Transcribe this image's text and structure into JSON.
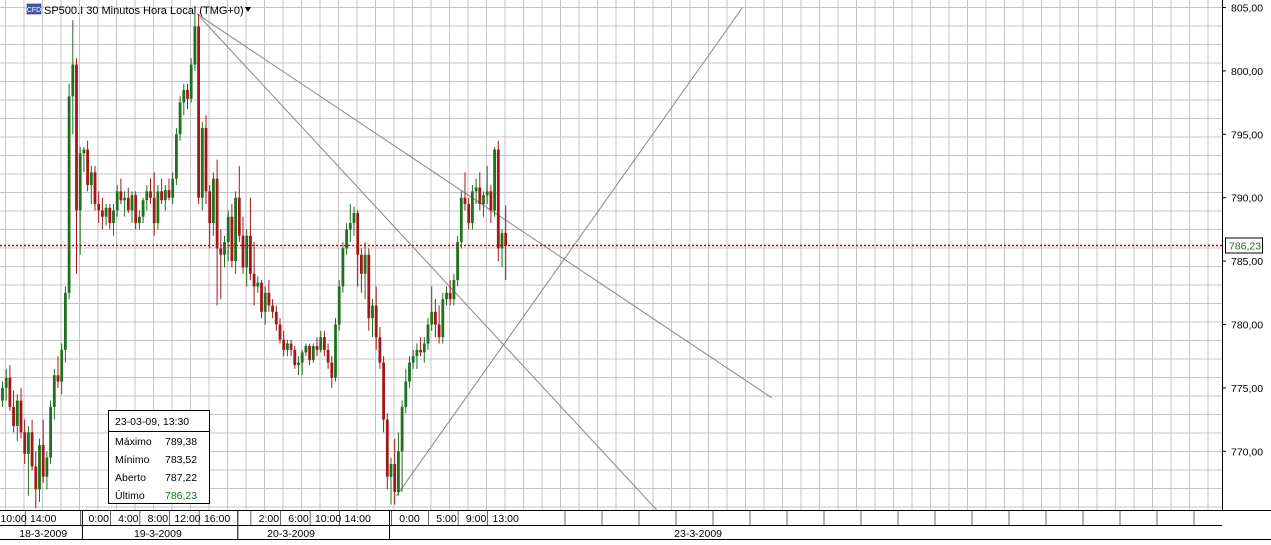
{
  "header": {
    "badge": "CFD",
    "title": "SP500.I 30 Minutos Hora Local (TMG+0)"
  },
  "price_tag": "786,23",
  "info_box": {
    "datetime": "23-03-09, 13:30",
    "rows": [
      {
        "label": "Máximo",
        "value": "789,38"
      },
      {
        "label": "Mínimo",
        "value": "783,52"
      },
      {
        "label": "Aberto",
        "value": "787,22"
      },
      {
        "label": "Último",
        "value": "786,23"
      }
    ]
  },
  "colors": {
    "up": "#207020",
    "down": "#a01818",
    "current_price": "#c00000",
    "last_value": "#207020",
    "grid": "#c4c4c4",
    "trendline": "#888888"
  },
  "chart_data": {
    "type": "candlestick",
    "title": "SP500.I 30 Minutos Hora Local (TMG+0)",
    "interval": "30 min",
    "ylim": [
      765,
      805
    ],
    "yticks": [
      805,
      800,
      795,
      790,
      785,
      780,
      775,
      770
    ],
    "ytick_labels": [
      "805,00",
      "800,00",
      "795,00",
      "790,00",
      "785,00",
      "780,00",
      "775,00",
      "770,00"
    ],
    "current_price": 786.23,
    "current_price_label": "786,23",
    "time_labels": [
      {
        "text": "10:00",
        "bar": 3
      },
      {
        "text": "14:00",
        "bar": 11
      },
      {
        "text": "0:00",
        "bar": 26
      },
      {
        "text": "4:00",
        "bar": 34
      },
      {
        "text": "8:00",
        "bar": 42
      },
      {
        "text": "12:00",
        "bar": 50
      },
      {
        "text": "16:00",
        "bar": 58
      },
      {
        "text": "2:00",
        "bar": 72
      },
      {
        "text": "6:00",
        "bar": 80
      },
      {
        "text": "10:00",
        "bar": 88
      },
      {
        "text": "14:00",
        "bar": 96
      },
      {
        "text": "0:00",
        "bar": 110
      },
      {
        "text": "5:00",
        "bar": 120
      },
      {
        "text": "9:00",
        "bar": 128
      },
      {
        "text": "13:00",
        "bar": 136
      }
    ],
    "day_labels": [
      {
        "text": "18-3-2009",
        "bar": 11
      },
      {
        "text": "19-3-2009",
        "bar": 42
      },
      {
        "text": "20-3-2009",
        "bar": 78
      },
      {
        "text": "23-3-2009",
        "bar": 188
      }
    ],
    "day_starts": [
      22,
      64,
      105
    ],
    "candles": [
      [
        774.0,
        775.5,
        773.5,
        775.0
      ],
      [
        775.0,
        776.5,
        774.0,
        775.8
      ],
      [
        775.8,
        776.8,
        773.2,
        773.5
      ],
      [
        773.5,
        774.8,
        771.5,
        772.0
      ],
      [
        772.0,
        774.5,
        770.8,
        774.0
      ],
      [
        774.0,
        775.0,
        771.0,
        771.5
      ],
      [
        771.5,
        772.5,
        769.0,
        769.8
      ],
      [
        769.8,
        772.0,
        766.5,
        771.5
      ],
      [
        771.5,
        772.5,
        768.5,
        768.8
      ],
      [
        768.8,
        770.0,
        765.5,
        767.0
      ],
      [
        767.0,
        771.0,
        766.0,
        770.5
      ],
      [
        770.5,
        772.5,
        767.5,
        768.0
      ],
      [
        768.0,
        770.0,
        767.0,
        769.5
      ],
      [
        769.5,
        774.0,
        769.0,
        773.5
      ],
      [
        773.5,
        776.5,
        772.5,
        776.0
      ],
      [
        776.0,
        777.5,
        775.0,
        775.5
      ],
      [
        775.5,
        778.5,
        774.5,
        778.0
      ],
      [
        778.0,
        783.0,
        777.0,
        782.5
      ],
      [
        782.5,
        799.0,
        782.0,
        798.0
      ],
      [
        798.0,
        804.0,
        795.0,
        800.5
      ],
      [
        800.5,
        801.0,
        784.0,
        789.0
      ],
      [
        789.0,
        794.0,
        785.5,
        793.5
      ],
      [
        793.5,
        794.0,
        792.0,
        793.8
      ],
      [
        793.8,
        794.5,
        790.5,
        791.0
      ],
      [
        791.0,
        792.5,
        789.5,
        792.0
      ],
      [
        792.0,
        792.5,
        789.0,
        789.5
      ],
      [
        789.5,
        790.5,
        788.0,
        789.0
      ],
      [
        789.0,
        790.0,
        787.5,
        788.5
      ],
      [
        788.5,
        789.5,
        787.8,
        789.2
      ],
      [
        789.2,
        789.5,
        787.5,
        788.0
      ],
      [
        788.0,
        789.5,
        787.0,
        789.0
      ],
      [
        789.0,
        791.0,
        788.5,
        790.5
      ],
      [
        790.5,
        791.5,
        789.5,
        789.8
      ],
      [
        789.8,
        790.5,
        788.5,
        790.0
      ],
      [
        790.0,
        790.8,
        788.8,
        789.0
      ],
      [
        789.0,
        790.5,
        788.0,
        790.2
      ],
      [
        790.2,
        790.5,
        787.5,
        788.0
      ],
      [
        788.0,
        789.0,
        787.5,
        788.5
      ],
      [
        788.5,
        790.0,
        788.0,
        789.8
      ],
      [
        789.8,
        791.0,
        789.0,
        790.5
      ],
      [
        790.5,
        791.5,
        789.5,
        790.0
      ],
      [
        790.0,
        792.0,
        787.0,
        788.0
      ],
      [
        788.0,
        791.0,
        787.5,
        790.5
      ],
      [
        790.5,
        791.5,
        789.5,
        789.8
      ],
      [
        789.8,
        791.0,
        789.0,
        790.6
      ],
      [
        790.6,
        791.5,
        789.8,
        790.0
      ],
      [
        790.0,
        792.0,
        789.5,
        791.5
      ],
      [
        791.5,
        795.5,
        791.0,
        795.0
      ],
      [
        795.0,
        798.0,
        794.5,
        797.5
      ],
      [
        797.5,
        799.0,
        796.5,
        798.5
      ],
      [
        798.5,
        799.0,
        797.0,
        797.8
      ],
      [
        797.8,
        801.0,
        797.5,
        800.5
      ],
      [
        800.5,
        804.5,
        800.0,
        803.5
      ],
      [
        803.5,
        804.5,
        789.5,
        790.0
      ],
      [
        790.0,
        796.0,
        789.0,
        795.5
      ],
      [
        795.5,
        796.5,
        789.5,
        790.5
      ],
      [
        790.5,
        791.0,
        786.0,
        788.0
      ],
      [
        788.0,
        792.0,
        787.0,
        791.5
      ],
      [
        791.5,
        793.0,
        781.5,
        786.0
      ],
      [
        786.0,
        787.5,
        782.0,
        785.5
      ],
      [
        785.5,
        787.0,
        784.5,
        786.5
      ],
      [
        786.5,
        789.0,
        785.0,
        788.5
      ],
      [
        788.5,
        789.5,
        784.5,
        785.0
      ],
      [
        785.0,
        790.5,
        784.0,
        790.0
      ],
      [
        790.0,
        792.5,
        786.5,
        787.0
      ],
      [
        787.0,
        788.5,
        784.0,
        784.5
      ],
      [
        784.5,
        787.5,
        783.0,
        787.0
      ],
      [
        787.0,
        790.0,
        783.5,
        784.0
      ],
      [
        784.0,
        786.5,
        781.5,
        783.0
      ],
      [
        783.0,
        783.8,
        782.5,
        783.3
      ],
      [
        783.3,
        783.5,
        780.5,
        781.0
      ],
      [
        781.0,
        783.0,
        780.0,
        782.5
      ],
      [
        782.5,
        783.5,
        781.0,
        781.5
      ],
      [
        781.5,
        782.0,
        780.5,
        781.0
      ],
      [
        781.0,
        781.5,
        779.5,
        780.0
      ],
      [
        780.0,
        780.5,
        778.5,
        778.8
      ],
      [
        778.8,
        779.5,
        777.5,
        778.0
      ],
      [
        778.0,
        778.8,
        777.5,
        778.5
      ],
      [
        778.5,
        778.8,
        777.5,
        778.0
      ],
      [
        778.0,
        778.3,
        776.5,
        776.8
      ],
      [
        776.8,
        777.5,
        776.0,
        777.0
      ],
      [
        777.0,
        778.0,
        776.0,
        777.8
      ],
      [
        777.8,
        778.5,
        777.5,
        778.3
      ],
      [
        778.3,
        778.5,
        776.8,
        777.2
      ],
      [
        777.2,
        778.5,
        777.0,
        778.3
      ],
      [
        778.3,
        779.0,
        777.5,
        778.0
      ],
      [
        778.0,
        779.5,
        777.8,
        779.0
      ],
      [
        779.0,
        779.5,
        777.5,
        778.0
      ],
      [
        778.0,
        778.5,
        776.5,
        777.0
      ],
      [
        777.0,
        777.5,
        775.0,
        775.8
      ],
      [
        775.8,
        780.5,
        775.5,
        780.0
      ],
      [
        780.0,
        783.5,
        779.5,
        783.0
      ],
      [
        783.0,
        786.5,
        782.5,
        786.0
      ],
      [
        786.0,
        788.0,
        785.5,
        787.5
      ],
      [
        787.5,
        789.5,
        786.5,
        788.0
      ],
      [
        788.0,
        789.3,
        787.0,
        788.8
      ],
      [
        788.8,
        789.0,
        783.0,
        785.5
      ],
      [
        785.5,
        786.0,
        782.5,
        784.0
      ],
      [
        784.0,
        786.5,
        782.0,
        785.5
      ],
      [
        785.5,
        786.0,
        779.5,
        780.5
      ],
      [
        780.5,
        782.0,
        779.0,
        781.5
      ],
      [
        781.5,
        783.0,
        778.0,
        779.0
      ],
      [
        779.0,
        779.8,
        776.5,
        777.0
      ],
      [
        777.0,
        777.5,
        771.5,
        772.5
      ],
      [
        772.5,
        773.0,
        767.0,
        768.0
      ],
      [
        768.0,
        769.5,
        765.8,
        769.0
      ],
      [
        769.0,
        771.0,
        765.8,
        766.8
      ],
      [
        766.8,
        771.5,
        766.5,
        770.0
      ],
      [
        770.0,
        774.0,
        766.8,
        773.5
      ],
      [
        773.5,
        776.5,
        773.0,
        775.5
      ],
      [
        775.5,
        777.5,
        775.0,
        777.0
      ],
      [
        777.0,
        778.0,
        776.5,
        777.5
      ],
      [
        777.5,
        778.5,
        776.5,
        778.0
      ],
      [
        778.0,
        779.0,
        777.5,
        777.8
      ],
      [
        777.8,
        779.0,
        777.0,
        778.5
      ],
      [
        778.5,
        780.5,
        778.0,
        780.0
      ],
      [
        780.0,
        783.0,
        779.5,
        781.0
      ],
      [
        781.0,
        782.0,
        779.0,
        780.0
      ],
      [
        780.0,
        781.5,
        778.5,
        779.0
      ],
      [
        779.0,
        782.5,
        778.5,
        782.0
      ],
      [
        782.0,
        783.0,
        781.5,
        782.5
      ],
      [
        782.5,
        783.5,
        781.5,
        782.0
      ],
      [
        782.0,
        784.0,
        781.5,
        783.5
      ],
      [
        783.5,
        787.0,
        783.0,
        786.5
      ],
      [
        786.5,
        790.5,
        786.0,
        790.0
      ],
      [
        790.0,
        792.0,
        789.0,
        789.5
      ],
      [
        789.5,
        790.0,
        787.5,
        788.0
      ],
      [
        788.0,
        791.0,
        787.5,
        790.5
      ],
      [
        790.5,
        791.5,
        789.5,
        790.8
      ],
      [
        790.8,
        792.0,
        789.0,
        789.5
      ],
      [
        789.5,
        790.5,
        788.5,
        790.2
      ],
      [
        790.2,
        792.5,
        789.5,
        790.5
      ],
      [
        790.5,
        791.0,
        788.0,
        789.0
      ],
      [
        789.0,
        794.0,
        788.5,
        793.8
      ],
      [
        793.8,
        794.5,
        785.0,
        786.0
      ],
      [
        786.0,
        787.5,
        784.5,
        787.2
      ],
      [
        787.22,
        789.38,
        783.52,
        786.23
      ]
    ],
    "trendlines": [
      {
        "from": [
          52.5,
          804.5
        ],
        "to": [
          208,
          774.2
        ]
      },
      {
        "from": [
          53.5,
          804.2
        ],
        "to": [
          178,
          765.0
        ]
      },
      {
        "from": [
          106.5,
          766.5
        ],
        "to": [
          200,
          805.0
        ]
      }
    ]
  }
}
